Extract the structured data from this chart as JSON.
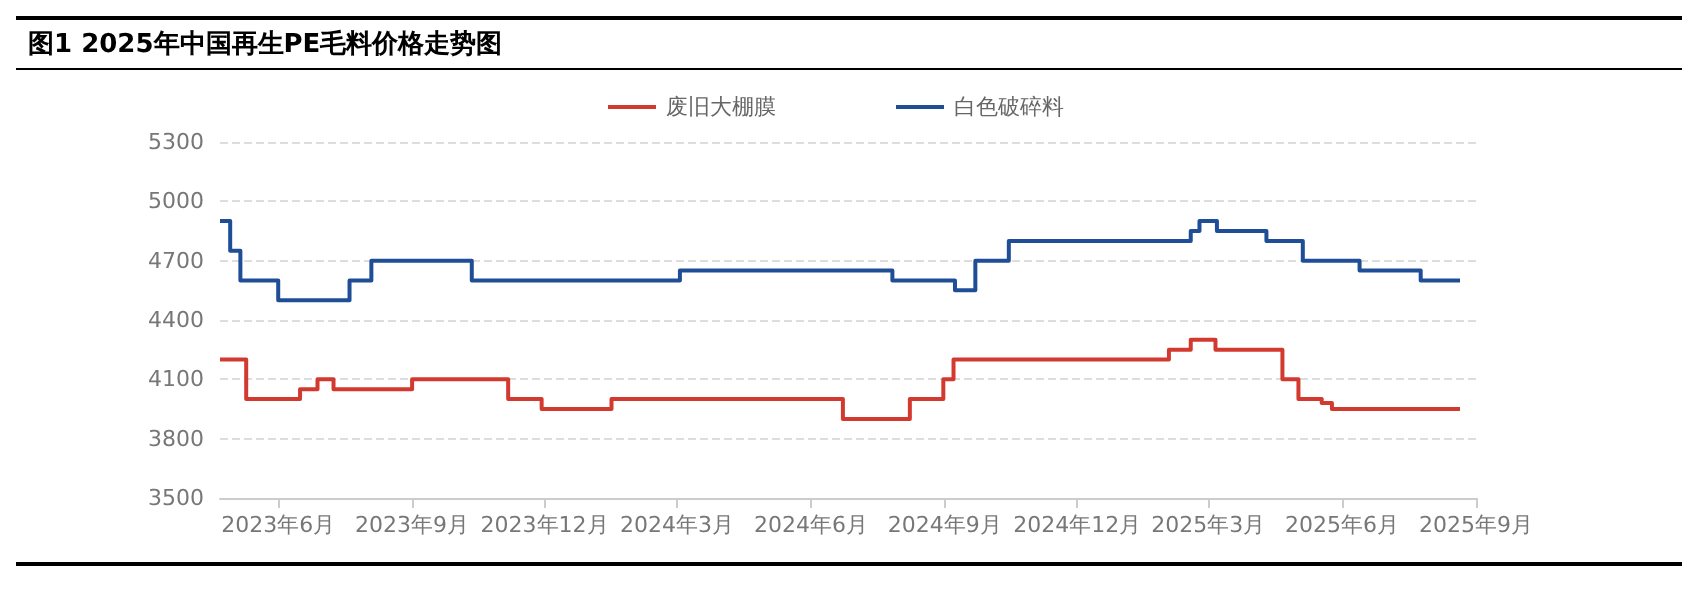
{
  "chart_data": {
    "type": "step",
    "title": "图1 2025年中国再生PE毛料价格走势图",
    "series": [
      {
        "name": "废旧大棚膜",
        "color": "#d23a30",
        "x": [
          "2023-04-22",
          "2023-05-10",
          "2023-06-16",
          "2023-06-28",
          "2023-07-09",
          "2023-09-01",
          "2023-11-06",
          "2023-11-29",
          "2024-01-16",
          "2024-06-23",
          "2024-08-08",
          "2024-08-31",
          "2024-09-07",
          "2025-02-02",
          "2025-02-17",
          "2025-03-06",
          "2025-04-21",
          "2025-05-02",
          "2025-05-18",
          "2025-05-25",
          "2025-08-21"
        ],
        "values": [
          4200,
          4000,
          4050,
          4100,
          4050,
          4100,
          4000,
          3950,
          4000,
          3900,
          4000,
          4100,
          4200,
          4250,
          4300,
          4250,
          4100,
          4000,
          3980,
          3950,
          3950
        ]
      },
      {
        "name": "白色破碎料",
        "color": "#1f4e96",
        "x": [
          "2023-04-22",
          "2023-04-29",
          "2023-05-06",
          "2023-06-01",
          "2023-07-20",
          "2023-08-04",
          "2023-10-12",
          "2024-03-03",
          "2024-07-27",
          "2024-09-08",
          "2024-09-22",
          "2024-10-15",
          "2025-02-17",
          "2025-02-23",
          "2025-03-07",
          "2025-04-10",
          "2025-05-05",
          "2025-06-13",
          "2025-07-25",
          "2025-08-21"
        ],
        "values": [
          4900,
          4750,
          4600,
          4500,
          4600,
          4700,
          4600,
          4650,
          4600,
          4550,
          4700,
          4800,
          4850,
          4900,
          4850,
          4800,
          4700,
          4650,
          4600,
          4600
        ]
      }
    ],
    "xlim": [
      "2023-04-22",
      "2025-09-01"
    ],
    "xticks": [
      {
        "value": "2023-06-01",
        "label": "2023年6月"
      },
      {
        "value": "2023-09-01",
        "label": "2023年9月"
      },
      {
        "value": "2023-12-01",
        "label": "2023年12月"
      },
      {
        "value": "2024-03-01",
        "label": "2024年3月"
      },
      {
        "value": "2024-06-01",
        "label": "2024年6月"
      },
      {
        "value": "2024-09-01",
        "label": "2024年9月"
      },
      {
        "value": "2024-12-01",
        "label": "2024年12月"
      },
      {
        "value": "2025-03-01",
        "label": "2025年3月"
      },
      {
        "value": "2025-06-01",
        "label": "2025年6月"
      },
      {
        "value": "2025-09-01",
        "label": "2025年9月"
      }
    ],
    "ylim": [
      3500,
      5300
    ],
    "yticks": [
      3500,
      3800,
      4100,
      4400,
      4700,
      5000,
      5300
    ],
    "grid": "y",
    "legend": "top"
  }
}
